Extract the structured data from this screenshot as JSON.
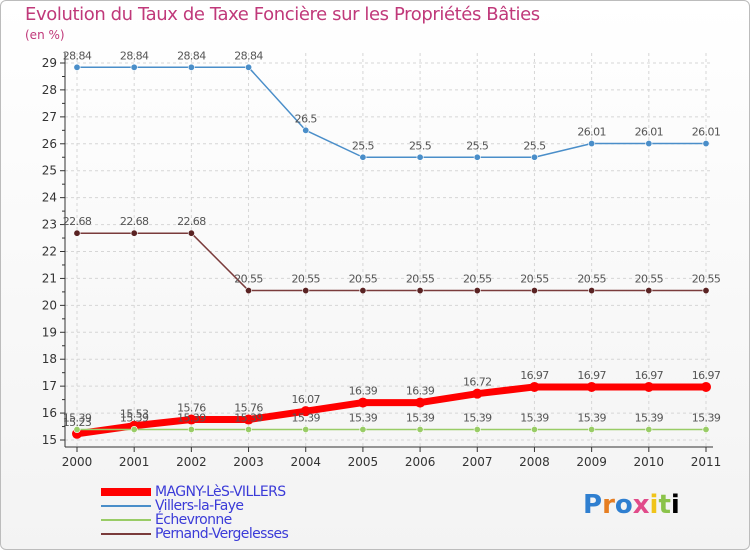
{
  "chart_data": {
    "type": "line",
    "title": "Evolution du Taux de Taxe Foncière sur les Propriétés Bâties",
    "ylabel": "(en %)",
    "xlabel": "",
    "ylim": [
      15,
      29
    ],
    "y_ticks": [
      "15",
      "16",
      "17",
      "18",
      "19",
      "20",
      "21",
      "22",
      "23",
      "24",
      "25",
      "26",
      "27",
      "28",
      "29"
    ],
    "categories": [
      "2000",
      "2001",
      "2002",
      "2003",
      "2004",
      "2005",
      "2006",
      "2007",
      "2008",
      "2009",
      "2010",
      "2011"
    ],
    "series": [
      {
        "name": "MAGNY-LèS-VILLERS",
        "color": "#ff0000",
        "values": [
          15.23,
          15.53,
          15.76,
          15.76,
          16.07,
          16.39,
          16.39,
          16.72,
          16.97,
          16.97,
          16.97,
          16.97
        ],
        "labels": [
          "15.23",
          "15.53",
          "15.76",
          "15.76",
          "16.07",
          "16.39",
          "16.39",
          "16.72",
          "16.97",
          "16.97",
          "16.97",
          "16.97"
        ]
      },
      {
        "name": "Villers-la-Faye",
        "color": "#4a8ec9",
        "values": [
          28.84,
          28.84,
          28.84,
          28.84,
          26.5,
          25.5,
          25.5,
          25.5,
          25.5,
          26.01,
          26.01,
          26.01
        ],
        "labels": [
          "28.84",
          "28.84",
          "28.84",
          "28.84",
          "26.5",
          "25.5",
          "25.5",
          "25.5",
          "25.5",
          "26.01",
          "26.01",
          "26.01"
        ]
      },
      {
        "name": "Échevronne",
        "color": "#99cc66",
        "values": [
          15.39,
          15.39,
          15.39,
          15.39,
          15.39,
          15.39,
          15.39,
          15.39,
          15.39,
          15.39,
          15.39,
          15.39
        ],
        "labels": [
          "15.39",
          "15.39",
          "15.39",
          "15.39",
          "15.39",
          "15.39",
          "15.39",
          "15.39",
          "15.39",
          "15.39",
          "15.39",
          "15.39"
        ]
      },
      {
        "name": "Pernand-Vergelesses",
        "color": "#7a3b3b",
        "values": [
          22.68,
          22.68,
          22.68,
          20.55,
          20.55,
          20.55,
          20.55,
          20.55,
          20.55,
          20.55,
          20.55,
          20.55
        ],
        "labels": [
          "22.68",
          "22.68",
          "22.68",
          "20.55",
          "20.55",
          "20.55",
          "20.55",
          "20.55",
          "20.55",
          "20.55",
          "20.55",
          "20.55"
        ]
      }
    ]
  },
  "logo": [
    "P",
    "r",
    "o",
    "x",
    "i",
    "t",
    "i"
  ]
}
